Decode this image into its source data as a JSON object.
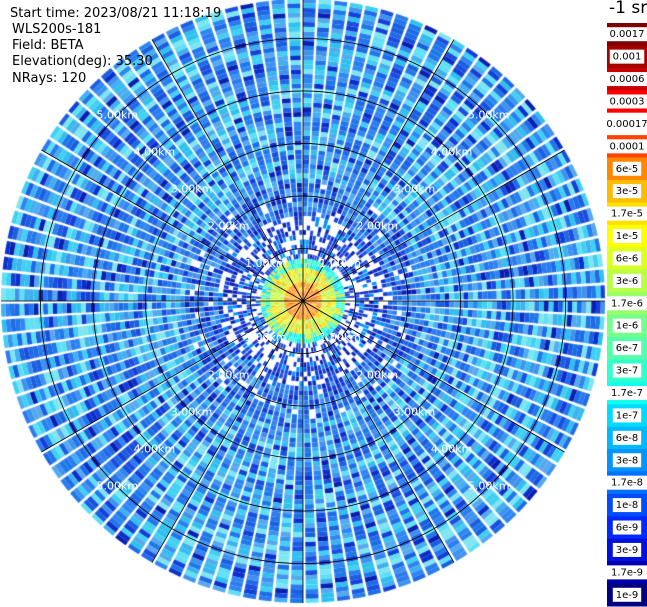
{
  "header": {
    "start_time": "Start time: 2023/08/21 11:18:19",
    "device": "WLS200s-181",
    "field": "Field: BETA",
    "elevation": "Elevation(deg): 35.30",
    "nrays": "NRays: 120"
  },
  "chart_data": {
    "type": "heatmap",
    "projection": "polar-ppi",
    "field": "BETA",
    "nrays": 120,
    "elevation_deg": 35.3,
    "range_rings_km": [
      1.0,
      2.0,
      3.0,
      4.0,
      5.0
    ],
    "max_range_km": 5.75,
    "range_labels": [
      "1.00km",
      "2.00km",
      "3.00km",
      "4.00km",
      "5.00km"
    ],
    "colorbar": {
      "unit_label": "-1 sr",
      "levels": [
        "0.0017",
        "0.001",
        "0.0006",
        "0.0003",
        "0.00017",
        "0.0001",
        "6e-5",
        "3e-5",
        "1.7e-5",
        "1e-5",
        "6e-6",
        "3e-6",
        "1.7e-6",
        "1e-6",
        "6e-7",
        "3e-7",
        "1.7e-7",
        "1e-7",
        "6e-8",
        "3e-8",
        "1.7e-8",
        "1e-8",
        "6e-9",
        "3e-9",
        "1.7e-9",
        "1e-9"
      ],
      "colors": [
        "#800000",
        "#a40000",
        "#c80000",
        "#ff0000",
        "#ffffff",
        "#ff4400",
        "#ff8800",
        "#ffbb00",
        "#ffe000",
        "#ffff00",
        "#ddff22",
        "#b8ff48",
        "#98ff68",
        "#76ff8a",
        "#56ffaa",
        "#34ffcc",
        "#12ffee",
        "#00dcff",
        "#00b8ff",
        "#0094ff",
        "#0070ff",
        "#004cff",
        "#0028ff",
        "#0010dd",
        "#0000b0",
        "#000080"
      ]
    },
    "grid": true,
    "legend_position": "right"
  },
  "colors": {
    "background": "#ffffff",
    "grid_line": "#000000",
    "ray_gap": "#ffffff"
  }
}
